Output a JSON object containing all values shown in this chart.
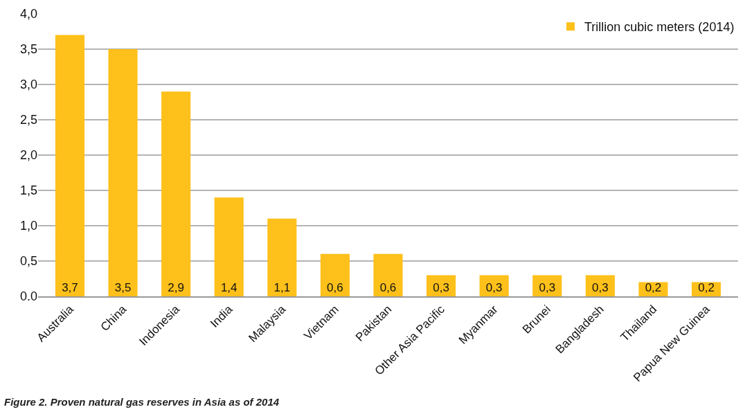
{
  "chart_data": {
    "type": "bar",
    "categories": [
      "Australia",
      "China",
      "Indonesia",
      "India",
      "Malaysia",
      "Vietnam",
      "Pakistan",
      "Other Asia Pacific",
      "Myanmar",
      "Brunei",
      "Bangladesh",
      "Thailand",
      "Papua New Guinea"
    ],
    "series": [
      {
        "name": "Trillion cubic meters (2014)",
        "color": "#fec01a",
        "values": [
          3.7,
          3.5,
          2.9,
          1.4,
          1.1,
          0.6,
          0.6,
          0.3,
          0.3,
          0.3,
          0.3,
          0.2,
          0.2
        ],
        "value_labels": [
          "3,7",
          "3,5",
          "2,9",
          "1,4",
          "1,1",
          "0,6",
          "0,6",
          "0,3",
          "0,3",
          "0,3",
          "0,3",
          "0,2",
          "0,2"
        ]
      }
    ],
    "ylim": [
      0,
      4
    ],
    "yticks": [
      {
        "value": 0,
        "label": "0.0"
      },
      {
        "value": 0.5,
        "label": "0,5"
      },
      {
        "value": 1,
        "label": "1,0"
      },
      {
        "value": 1.5,
        "label": "1,5"
      },
      {
        "value": 2,
        "label": "2,0"
      },
      {
        "value": 2.5,
        "label": "2,5"
      },
      {
        "value": 3,
        "label": "3,0"
      },
      {
        "value": 3.5,
        "label": "3,5"
      },
      {
        "value": 4,
        "label": "4,0"
      }
    ],
    "grid": "y",
    "legend": "top right",
    "annotations": [
      "Figure 2. Proven natural gas reserves in Asia as of 2014"
    ]
  }
}
